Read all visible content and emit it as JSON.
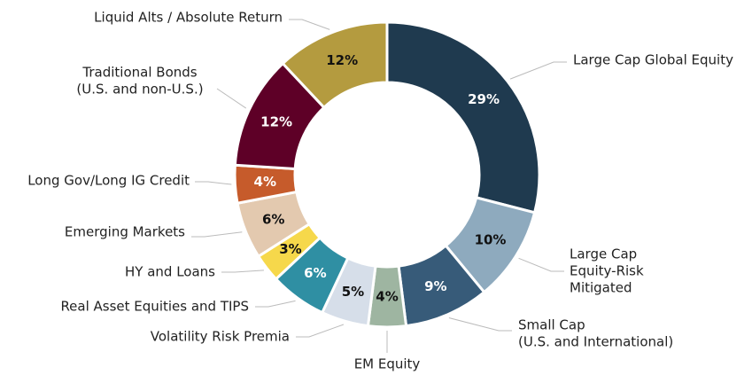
{
  "chart_data": {
    "type": "donut",
    "categories": [
      [
        "Large Cap Global Equity"
      ],
      [
        "Large Cap",
        "Equity-Risk",
        "Mitigated"
      ],
      [
        "Small Cap",
        "(U.S. and International)"
      ],
      [
        "EM Equity"
      ],
      [
        "Volatility Risk Premia"
      ],
      [
        "Real Asset Equities and TIPS"
      ],
      [
        "HY and Loans"
      ],
      [
        "Emerging Markets"
      ],
      [
        "Long Gov/Long IG Credit"
      ],
      [
        "Traditional Bonds",
        "(U.S. and non-U.S.)"
      ],
      [
        "Liquid Alts / Absolute Return"
      ]
    ],
    "values": [
      29,
      10,
      9,
      4,
      5,
      6,
      3,
      6,
      4,
      12,
      12
    ],
    "value_labels": [
      "29%",
      "10%",
      "9%",
      "4%",
      "5%",
      "6%",
      "3%",
      "6%",
      "4%",
      "12%",
      "12%"
    ],
    "colors": [
      "#1f3a4f",
      "#8eaabe",
      "#375b79",
      "#9eb5a1",
      "#d6dee9",
      "#2f8fa3",
      "#f6d84b",
      "#e3c9af",
      "#c65b2b",
      "#5e0027",
      "#b49b3f"
    ]
  }
}
